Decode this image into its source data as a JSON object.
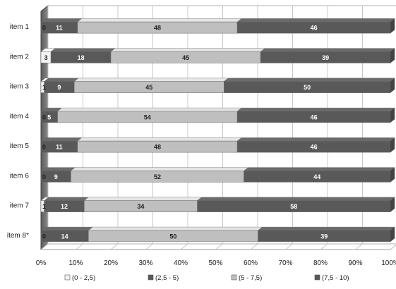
{
  "chart_data": {
    "type": "bar",
    "stacked": "percent",
    "orientation": "horizontal",
    "three_d": true,
    "categories": [
      "item 1",
      "item 2",
      "item 3",
      "item 4",
      "item 5",
      "item 6",
      "item 7",
      "item 8*"
    ],
    "series": [
      {
        "name": "(0 - 2,5)",
        "color": "#f2f2f2",
        "values": [
          0,
          3,
          1,
          0,
          0,
          0,
          1,
          0
        ]
      },
      {
        "name": "(2,5 - 5)",
        "color": "#595959",
        "values": [
          11,
          18,
          9,
          5,
          11,
          9,
          12,
          14
        ]
      },
      {
        "name": "(5 - 7,5)",
        "color": "#bfbfbf",
        "values": [
          48,
          45,
          45,
          54,
          48,
          52,
          34,
          50
        ]
      },
      {
        "name": "(7,5 - 10)",
        "color": "#595959",
        "values": [
          46,
          39,
          50,
          46,
          46,
          44,
          58,
          39
        ]
      }
    ],
    "label_colors": [
      "#222222",
      "#ffffff",
      "#222222",
      "#ffffff"
    ],
    "x_ticks": [
      "0%",
      "10%",
      "20%",
      "30%",
      "40%",
      "50%",
      "60%",
      "70%",
      "80%",
      "90%",
      "100%"
    ],
    "xlim": [
      0,
      100
    ],
    "grid": true,
    "legend_position": "bottom",
    "title": "",
    "xlabel": "",
    "ylabel": ""
  }
}
